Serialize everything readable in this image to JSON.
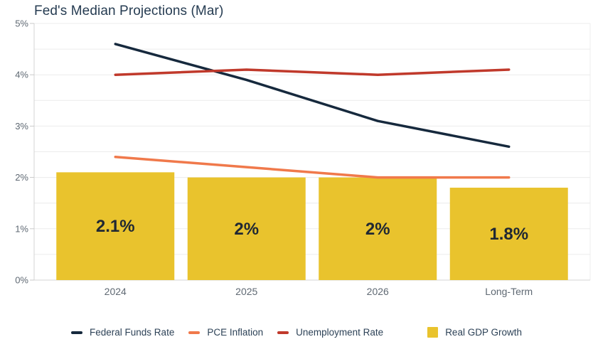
{
  "chart": {
    "title": "Fed's Median Projections (Mar)"
  },
  "chart_data": {
    "type": "mixed-bar-line",
    "title": "Fed's Median Projections (Mar)",
    "categories": [
      "2024",
      "2025",
      "2026",
      "Long-Term"
    ],
    "bar_series": {
      "name": "Real GDP Growth",
      "values": [
        2.1,
        2.0,
        2.0,
        1.8
      ],
      "value_labels": [
        "2.1%",
        "2%",
        "2%",
        "1.8%"
      ],
      "color": "#e9c32d"
    },
    "line_series": [
      {
        "name": "Federal Funds Rate",
        "values": [
          4.6,
          3.9,
          3.1,
          2.6
        ],
        "color": "#16293d"
      },
      {
        "name": "PCE Inflation",
        "values": [
          2.4,
          2.2,
          2.0,
          2.0
        ],
        "color": "#f0794b"
      },
      {
        "name": "Unemployment Rate",
        "values": [
          4.0,
          4.1,
          4.0,
          4.1
        ],
        "color": "#c0392b"
      }
    ],
    "y_axis": {
      "min": 0,
      "max": 5,
      "tick_step": 1,
      "tick_labels": [
        "0%",
        "1%",
        "2%",
        "3%",
        "4%",
        "5%"
      ],
      "grid_step": 0.5
    },
    "xlabel": "",
    "ylabel": "",
    "grid": true,
    "legend_position": "bottom"
  },
  "colors": {
    "title_text": "#263c52",
    "axis_text": "#5f6973",
    "bar_label_text": "#202833",
    "legend_text": "#2d4257",
    "gridline": "#ececec",
    "axis_line": "#d4d4d4",
    "tick": "#c9c9c9"
  }
}
